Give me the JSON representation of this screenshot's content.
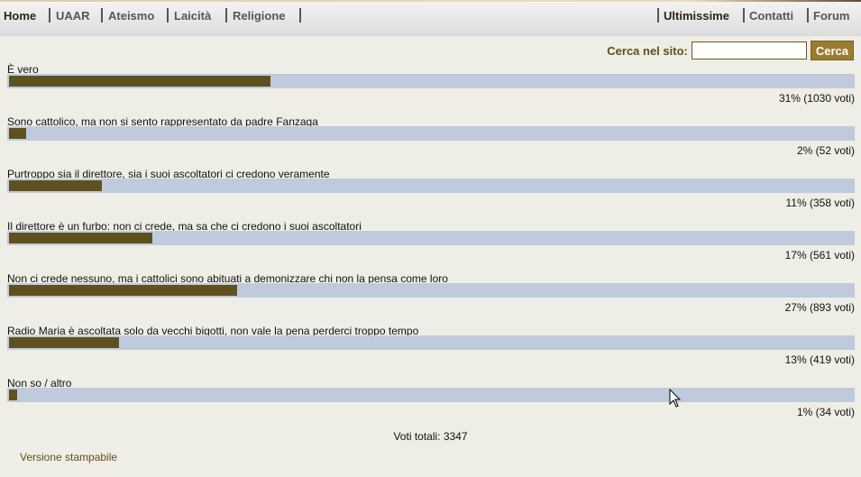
{
  "nav": {
    "left": [
      "Home",
      "UAAR",
      "Ateismo",
      "Laicità",
      "Religione"
    ],
    "right": [
      "Ultimissime",
      "Contatti",
      "Forum"
    ]
  },
  "search": {
    "label": "Cerca nel sito:",
    "value": "",
    "button": "Cerca"
  },
  "poll": {
    "options": [
      {
        "label": "È vero",
        "percent": 31,
        "result": "31% (1030 voti)"
      },
      {
        "label": "Sono cattolico, ma non si sento rappresentato da padre Fanzaga",
        "percent": 2,
        "result": "2% (52 voti)"
      },
      {
        "label": "Purtroppo sia il direttore, sia i suoi ascoltatori ci credono veramente",
        "percent": 11,
        "result": "11% (358 voti)"
      },
      {
        "label": "Il direttore è un furbo: non ci crede, ma sa che ci credono i suoi ascoltatori",
        "percent": 17,
        "result": "17% (561 voti)"
      },
      {
        "label": "Non ci crede nessuno, ma i cattolici sono abituati a demonizzare chi non la pensa come loro",
        "percent": 27,
        "result": "27% (893 voti)"
      },
      {
        "label": "Radio Maria è ascoltata solo da vecchi bigotti, non vale la pena perderci troppo tempo",
        "percent": 13,
        "result": "13% (419 voti)"
      },
      {
        "label": "Non so / altro",
        "percent": 1,
        "result": "1% (34 voti)"
      }
    ],
    "total": "Voti totali: 3347"
  },
  "print_link": "Versione stampabile",
  "colors": {
    "bar_fill": "#5f5020",
    "bar_track": "#bfcbdc",
    "accent": "#9a7d32"
  }
}
